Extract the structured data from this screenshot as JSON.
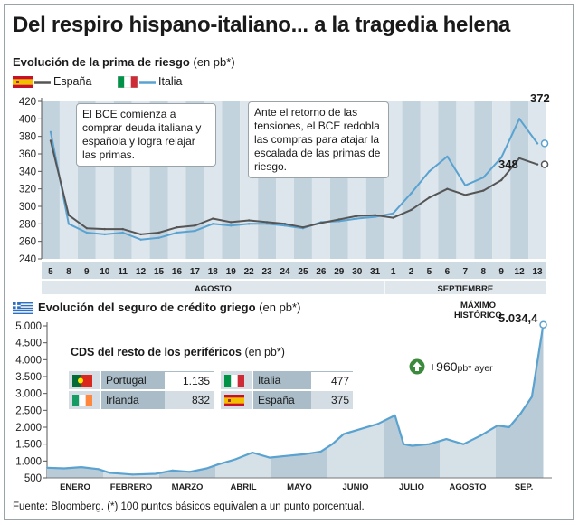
{
  "title": "Del respiro hispano-italiano... a la tragedia helena",
  "chart1": {
    "subtitle": "Evolución de la prima de riesgo",
    "unit": "(en pb*)",
    "legend": [
      {
        "name": "España",
        "color": "#555555"
      },
      {
        "name": "Italia",
        "color": "#5aa2d0"
      }
    ],
    "note1": "El BCE comienza a comprar deuda italiana y española y logra relajar las primas.",
    "note2": "Ante el retorno de las tensiones, el BCE redobla las compras para atajar la escalada de las primas de riesgo.",
    "label_italia_last": "372",
    "label_espana_last": "348",
    "months": [
      "AGOSTO",
      "SEPTIEMBRE"
    ]
  },
  "chart2": {
    "subtitle": "Evolución del seguro de crédito griego",
    "unit": "(en pb*)",
    "max_label_line1": "MÁXIMO",
    "max_label_line2": "HISTÓRICO",
    "max_value": "5.034,4",
    "change": "+960",
    "change_unit": "pb* ayer",
    "cds": {
      "title": "CDS del resto de los periféricos",
      "unit": "(en pb*)",
      "rows": [
        {
          "country": "Portugal",
          "value": "1.135"
        },
        {
          "country": "Irlanda",
          "value": "832"
        },
        {
          "country": "Italia",
          "value": "477"
        },
        {
          "country": "España",
          "value": "375"
        }
      ]
    }
  },
  "source": "Fuente: Bloomberg. (*) 100 puntos básicos equivalen a un punto porcentual.",
  "chart_data": [
    {
      "type": "line",
      "title": "Evolución de la prima de riesgo",
      "ylabel": "en pb*",
      "ylim": [
        240,
        420
      ],
      "yticks": [
        240,
        260,
        280,
        300,
        320,
        340,
        360,
        380,
        400,
        420
      ],
      "x": [
        "5",
        "8",
        "9",
        "10",
        "11",
        "12",
        "15",
        "16",
        "17",
        "18",
        "19",
        "22",
        "23",
        "24",
        "25",
        "26",
        "29",
        "30",
        "31",
        "1",
        "2",
        "5",
        "6",
        "7",
        "8",
        "9",
        "12",
        "13"
      ],
      "months": [
        {
          "name": "AGOSTO",
          "from": "5",
          "to": "31"
        },
        {
          "name": "SEPTIEMBRE",
          "from": "1",
          "to": "13"
        }
      ],
      "series": [
        {
          "name": "España",
          "color": "#555555",
          "values": [
            375,
            290,
            275,
            274,
            274,
            268,
            270,
            276,
            278,
            286,
            282,
            284,
            282,
            280,
            276,
            281,
            285,
            289,
            290,
            287,
            296,
            310,
            320,
            313,
            318,
            330,
            355,
            348
          ]
        },
        {
          "name": "Italia",
          "color": "#5aa2d0",
          "values": [
            385,
            280,
            270,
            268,
            270,
            262,
            264,
            270,
            272,
            280,
            278,
            280,
            280,
            278,
            275,
            282,
            283,
            286,
            288,
            292,
            315,
            340,
            357,
            324,
            333,
            356,
            400,
            372
          ]
        }
      ],
      "annotations": [
        {
          "series": "Italia",
          "x": "13",
          "value": 372
        },
        {
          "series": "España",
          "x": "13",
          "value": 348
        }
      ]
    },
    {
      "type": "area",
      "title": "Evolución del seguro de crédito griego",
      "ylabel": "en pb*",
      "ylim": [
        500,
        5000
      ],
      "yticks": [
        500,
        1000,
        1500,
        2000,
        2500,
        3000,
        3500,
        4000,
        4500,
        5000
      ],
      "categories": [
        "ENERO",
        "FEBRERO",
        "MARZO",
        "ABRIL",
        "MAYO",
        "JUNIO",
        "JULIO",
        "AGOSTO",
        "SEP."
      ],
      "x": [
        0,
        0.3,
        0.6,
        0.9,
        1.1,
        1.5,
        1.9,
        2.2,
        2.5,
        2.8,
        3.0,
        3.3,
        3.6,
        3.9,
        4.2,
        4.5,
        4.8,
        5.0,
        5.2,
        5.5,
        5.8,
        6.1,
        6.25,
        6.4,
        6.7,
        7.0,
        7.3,
        7.6,
        7.9,
        8.1,
        8.3,
        8.5,
        8.7
      ],
      "values": [
        800,
        780,
        820,
        760,
        650,
        600,
        620,
        720,
        680,
        780,
        900,
        1050,
        1250,
        1100,
        1150,
        1200,
        1280,
        1500,
        1800,
        1950,
        2100,
        2350,
        1500,
        1450,
        1500,
        1650,
        1500,
        1750,
        2050,
        2000,
        2400,
        2900,
        5034.4
      ],
      "max": {
        "label": "MÁXIMO HISTÓRICO",
        "value": 5034.4
      }
    }
  ]
}
